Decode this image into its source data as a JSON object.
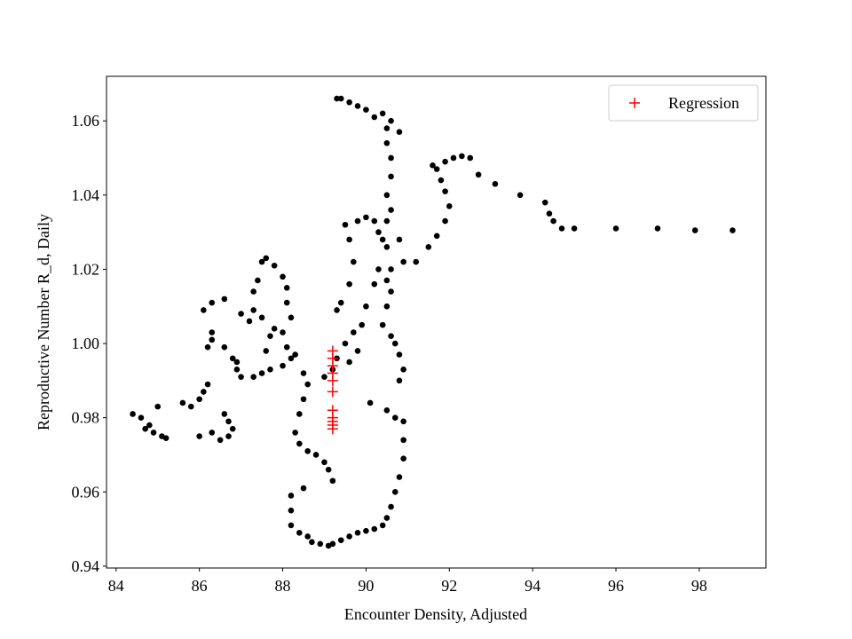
{
  "chart_data": {
    "type": "scatter",
    "xlabel": "Encounter Density, Adjusted",
    "ylabel": "Reproductive Number R_d, Daily",
    "xlim": [
      83.77,
      99.6
    ],
    "ylim": [
      0.9395,
      1.072
    ],
    "xticks": [
      84,
      86,
      88,
      90,
      92,
      94,
      96,
      98
    ],
    "yticks": [
      0.94,
      0.96,
      0.98,
      {
        "value": 1,
        "label": "1.00"
      },
      1.02,
      1.04,
      1.06
    ],
    "legend": "upper right",
    "series": [
      {
        "color": "#000000",
        "marker": "dot",
        "x": [
          84.4,
          84.6,
          84.8,
          84.7,
          84.9,
          85.1,
          85.2,
          85.0,
          85.6,
          85.8,
          86.0,
          86.1,
          86.2,
          86.0,
          86.3,
          86.5,
          86.7,
          86.8,
          86.6,
          86.7,
          86.2,
          86.3,
          86.3,
          86.1,
          86.3,
          86.6,
          86.8,
          86.9,
          87.0,
          86.9,
          86.6,
          87.0,
          87.2,
          87.3,
          87.4,
          87.5,
          87.6,
          87.8,
          88.0,
          88.1,
          88.1,
          88.2,
          88.0,
          88.1,
          88.2,
          88.0,
          87.7,
          87.5,
          87.3,
          87.6,
          87.7,
          87.5,
          87.3,
          87.8,
          88.3,
          88.5,
          88.6,
          88.5,
          88.4,
          88.3,
          88.4,
          88.6,
          88.8,
          89.0,
          89.1,
          89.2,
          88.5,
          88.2,
          88.2,
          88.2,
          88.4,
          88.6,
          88.7,
          88.9,
          89.1,
          89.2,
          89.4,
          89.6,
          89.8,
          90.0,
          90.2,
          90.4,
          90.5,
          90.6,
          90.7,
          90.8,
          90.9,
          90.9,
          90.9,
          90.7,
          90.5,
          90.1,
          89.0,
          89.2,
          89.3,
          89.5,
          89.7,
          89.6,
          89.8,
          89.9,
          89.3,
          89.4,
          89.6,
          89.7,
          89.6,
          89.8,
          89.5,
          90.0,
          90.2,
          90.3,
          90.4,
          90.5,
          90.3,
          90.2,
          90.0,
          90.4,
          90.6,
          90.7,
          90.8,
          90.9,
          90.8,
          90.5,
          90.6,
          90.5,
          90.6,
          90.5,
          90.6,
          90.5,
          90.6,
          90.6,
          90.5,
          90.5,
          90.8,
          90.6,
          90.4,
          90.2,
          90.0,
          89.8,
          89.6,
          89.4,
          89.3,
          90.8,
          90.9,
          91.2,
          91.5,
          91.7,
          91.9,
          92.0,
          91.9,
          91.8,
          91.7,
          91.6,
          91.9,
          92.1,
          92.3,
          92.5,
          92.7,
          93.1,
          93.7,
          94.3,
          94.4,
          94.5,
          94.7,
          95.0,
          96.0,
          97.0,
          97.9,
          98.8
        ],
        "values": [
          0.981,
          0.98,
          0.978,
          0.977,
          0.976,
          0.975,
          0.9745,
          0.983,
          0.984,
          0.983,
          0.985,
          0.987,
          0.989,
          0.975,
          0.976,
          0.974,
          0.975,
          0.977,
          0.981,
          0.979,
          0.999,
          1.001,
          1.003,
          1.009,
          1.011,
          0.999,
          0.996,
          0.993,
          0.991,
          0.995,
          1.012,
          1.008,
          1.006,
          1.014,
          1.017,
          1.022,
          1.023,
          1.021,
          1.018,
          1.015,
          1.011,
          1.007,
          1.003,
          0.999,
          0.996,
          0.994,
          0.993,
          0.992,
          0.991,
          0.998,
          1.002,
          1.007,
          1.009,
          1.004,
          0.997,
          0.992,
          0.989,
          0.985,
          0.981,
          0.976,
          0.973,
          0.971,
          0.97,
          0.968,
          0.966,
          0.963,
          0.961,
          0.959,
          0.955,
          0.951,
          0.949,
          0.948,
          0.9465,
          0.946,
          0.9455,
          0.946,
          0.947,
          0.948,
          0.949,
          0.9495,
          0.95,
          0.951,
          0.953,
          0.956,
          0.96,
          0.964,
          0.969,
          0.974,
          0.979,
          0.98,
          0.982,
          0.984,
          0.991,
          0.993,
          0.996,
          1.0,
          1.003,
          0.995,
          0.998,
          1.005,
          1.009,
          1.011,
          1.016,
          1.022,
          1.028,
          1.033,
          1.032,
          1.034,
          1.033,
          1.03,
          1.028,
          1.026,
          1.02,
          1.016,
          1.01,
          1.005,
          1.002,
          1.0,
          0.997,
          0.993,
          0.99,
          1.01,
          1.014,
          1.017,
          1.02,
          1.033,
          1.036,
          1.04,
          1.045,
          1.05,
          1.054,
          1.058,
          1.057,
          1.06,
          1.062,
          1.061,
          1.063,
          1.064,
          1.065,
          1.066,
          1.066,
          1.028,
          1.022,
          1.022,
          1.026,
          1.029,
          1.033,
          1.037,
          1.041,
          1.044,
          1.047,
          1.048,
          1.049,
          1.05,
          1.0505,
          1.05,
          1.0455,
          1.043,
          1.04,
          1.038,
          1.035,
          1.033,
          1.031,
          1.031,
          1.031,
          1.031,
          1.0305,
          1.0305
        ]
      },
      {
        "name": "Regression",
        "color": "#ff0000",
        "marker": "plus",
        "x": [
          89.2,
          89.2,
          89.2,
          89.2,
          89.2,
          89.2,
          89.2,
          89.2,
          89.2,
          89.2,
          89.2
        ],
        "values": [
          0.998,
          0.996,
          0.994,
          0.992,
          0.99,
          0.987,
          0.982,
          0.98,
          0.979,
          0.978,
          0.977
        ]
      }
    ]
  }
}
